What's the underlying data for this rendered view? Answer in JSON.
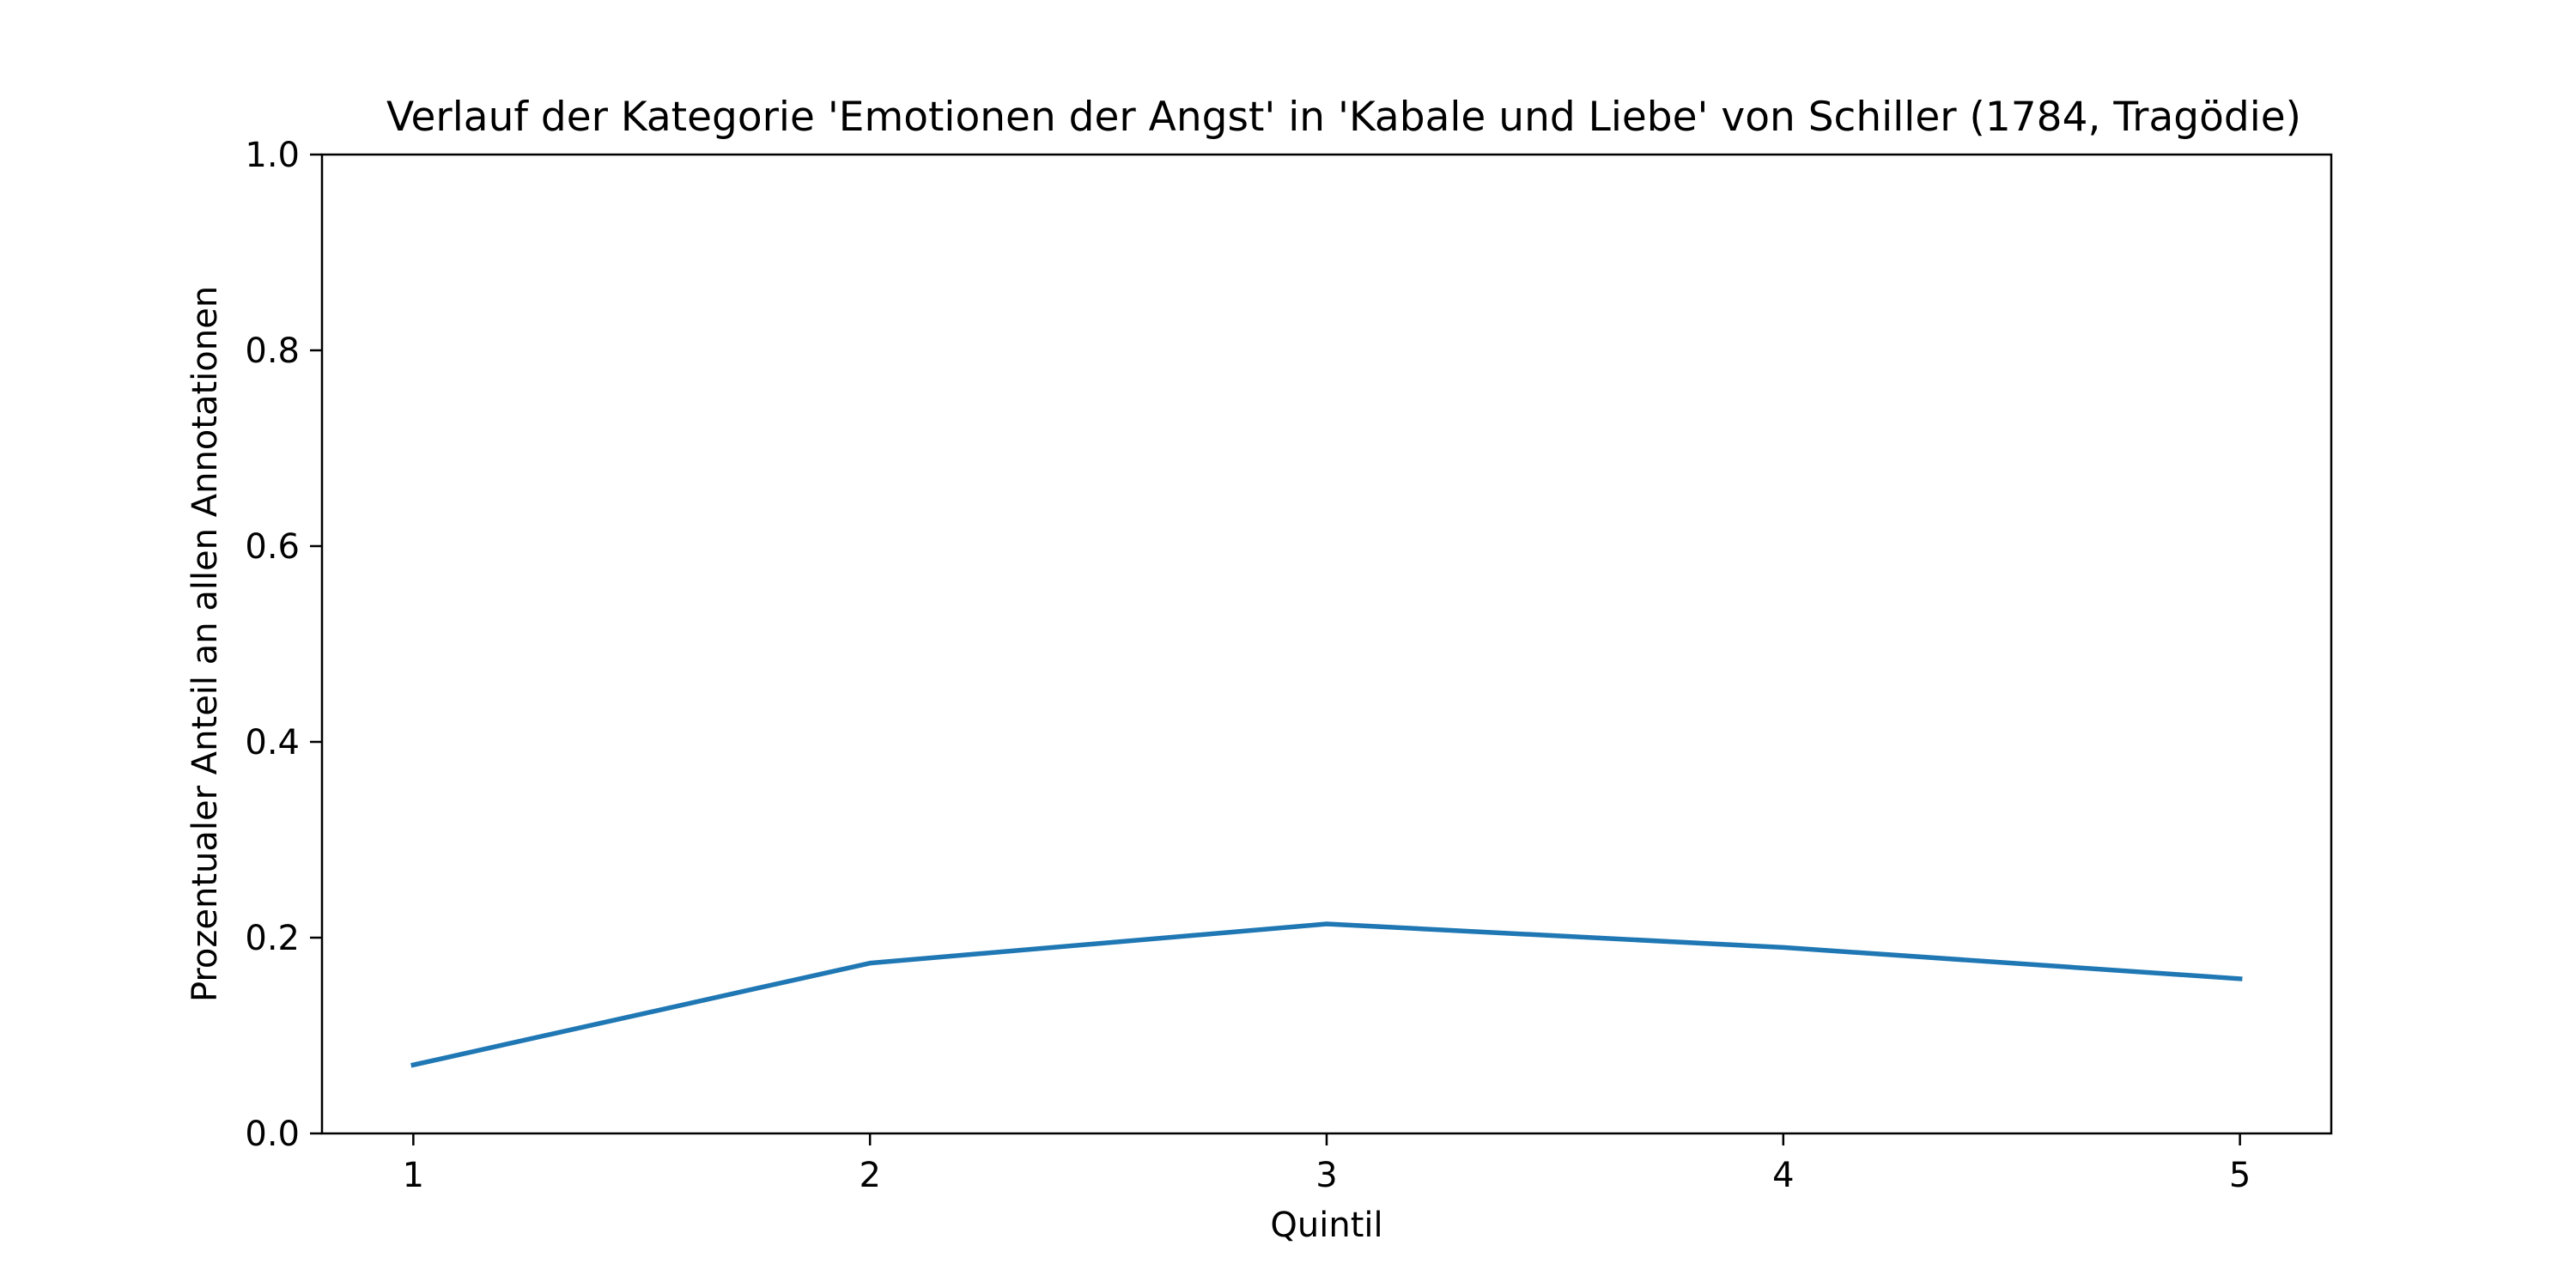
{
  "chart_data": {
    "type": "line",
    "title": "Verlauf der Kategorie 'Emotionen der Angst' in 'Kabale und Liebe' von Schiller (1784, Tragödie)",
    "xlabel": "Quintil",
    "ylabel": "Prozentualer Anteil an allen Annotationen",
    "x": [
      1,
      2,
      3,
      4,
      5
    ],
    "series": [
      {
        "values": [
          0.07,
          0.174,
          0.214,
          0.19,
          0.158
        ],
        "color": "#1f77b4"
      }
    ],
    "xlim": [
      0.8,
      5.2
    ],
    "ylim": [
      0.0,
      1.0
    ],
    "xticks": [
      "1",
      "2",
      "3",
      "4",
      "5"
    ],
    "yticks": [
      "0.0",
      "0.2",
      "0.4",
      "0.6",
      "0.8",
      "1.0"
    ],
    "grid": false,
    "legend": "none"
  }
}
